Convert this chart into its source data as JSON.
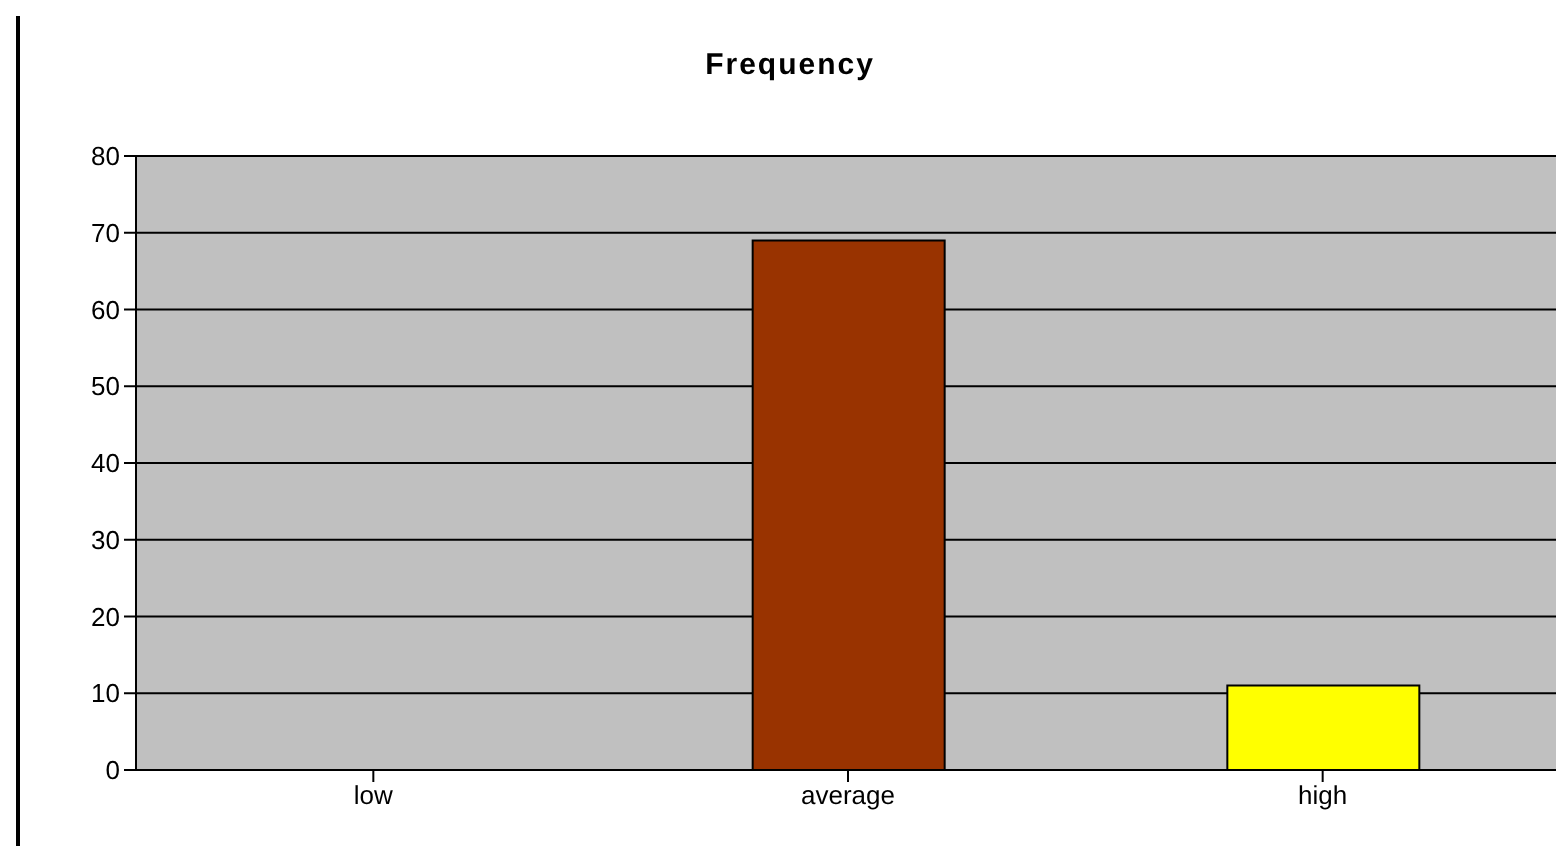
{
  "chart_data": {
    "type": "bar",
    "title": "Frequency",
    "categories": [
      "low",
      "average",
      "high"
    ],
    "values": [
      0,
      69,
      11
    ],
    "colors": [
      "#000080",
      "#993300",
      "#ffff00"
    ],
    "ylim": [
      0,
      80
    ],
    "yticks": [
      0,
      10,
      20,
      30,
      40,
      50,
      60,
      70,
      80
    ],
    "grid": "y",
    "legend": false
  }
}
